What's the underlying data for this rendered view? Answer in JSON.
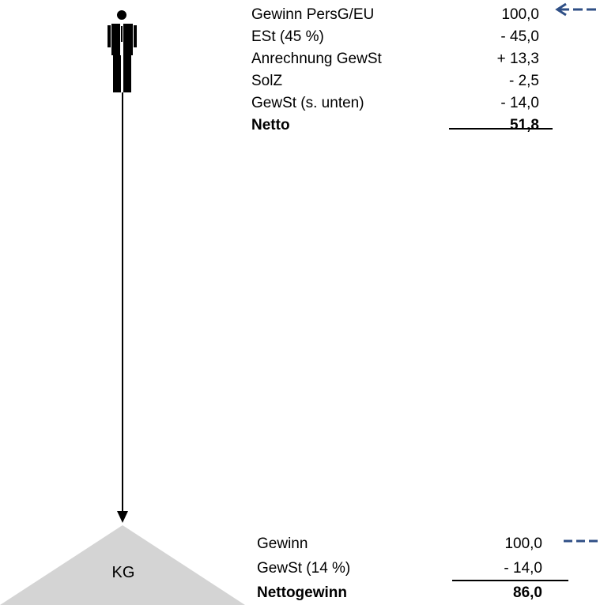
{
  "person_calc": {
    "rows": [
      {
        "label": "Gewinn PersG/EU",
        "value": "100,0"
      },
      {
        "label": "ESt (45 %)",
        "value": "- 45,0"
      },
      {
        "label": "Anrechnung GewSt",
        "value": "+ 13,3"
      },
      {
        "label": "SolZ",
        "value": "- 2,5"
      },
      {
        "label": "GewSt (s. unten)",
        "value": "- 14,0"
      }
    ],
    "total": {
      "label": "Netto",
      "value": "51,8"
    }
  },
  "kg_calc": {
    "entity_label": "KG",
    "rows": [
      {
        "label": "Gewinn",
        "value": "100,0"
      },
      {
        "label": "GewSt (14 %)",
        "value": "- 14,0"
      }
    ],
    "total": {
      "label": "Nettogewinn",
      "value": "86,0"
    }
  },
  "colors": {
    "arrow_dashed": "#2f4f86",
    "triangle": "#d4d4d4",
    "line": "#000000"
  },
  "icons": [
    "person-icon",
    "dashed-arrow-icon"
  ]
}
